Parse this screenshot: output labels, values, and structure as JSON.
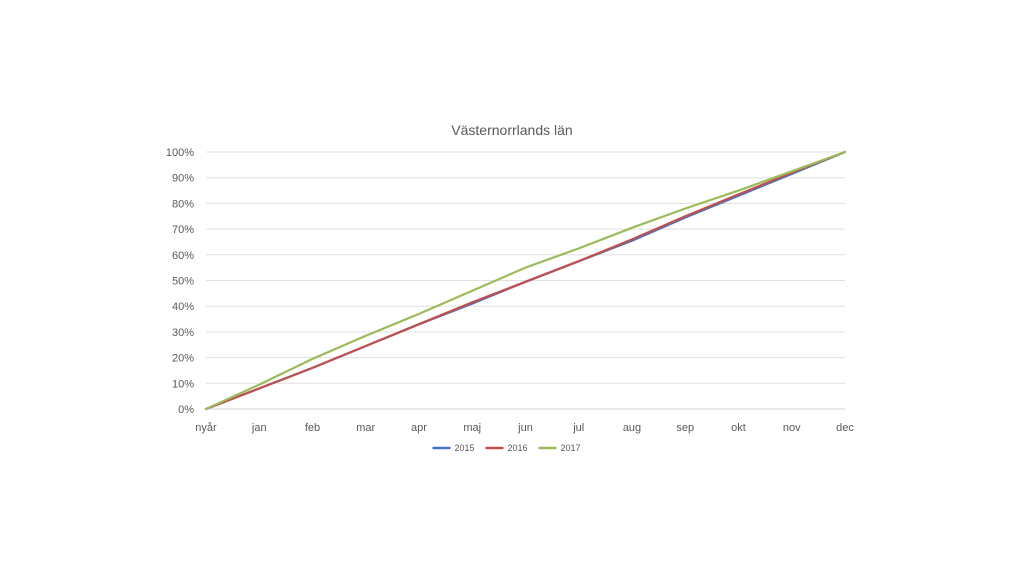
{
  "chart_data": {
    "type": "line",
    "title": "Västernorrlands län",
    "categories": [
      "nyår",
      "jan",
      "feb",
      "mar",
      "apr",
      "maj",
      "jun",
      "jul",
      "aug",
      "sep",
      "okt",
      "nov",
      "dec"
    ],
    "y_ticks": [
      "0%",
      "10%",
      "20%",
      "30%",
      "40%",
      "50%",
      "60%",
      "70%",
      "80%",
      "90%",
      "100%"
    ],
    "ylim": [
      0,
      100
    ],
    "grid": true,
    "legend_position": "bottom",
    "series": [
      {
        "name": "2015",
        "color": "#4472c4",
        "values": [
          0,
          8,
          16,
          24.5,
          33,
          41,
          49.5,
          57.5,
          65.5,
          74.5,
          83,
          91.5,
          100
        ]
      },
      {
        "name": "2016",
        "color": "#c0504d",
        "values": [
          0,
          8,
          16,
          24.5,
          33,
          41.5,
          49.5,
          57.5,
          66,
          75,
          83.5,
          92,
          100
        ]
      },
      {
        "name": "2017",
        "color": "#9bbb59",
        "values": [
          0,
          9.5,
          19.5,
          28.5,
          37,
          46,
          55,
          62.5,
          70.5,
          78,
          85,
          92.5,
          100
        ]
      }
    ]
  }
}
